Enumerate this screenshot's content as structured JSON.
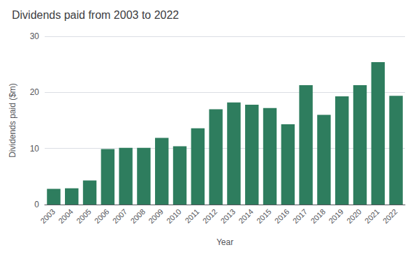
{
  "chart_data": {
    "type": "bar",
    "title": "Dividends paid from 2003 to 2022",
    "xlabel": "Year",
    "ylabel": "Dividends paid ($m)",
    "categories": [
      2003,
      2004,
      2005,
      2006,
      2007,
      2008,
      2009,
      2010,
      2011,
      2012,
      2013,
      2014,
      2015,
      2016,
      2017,
      2018,
      2019,
      2020,
      2021,
      2022
    ],
    "values": [
      2.8,
      2.9,
      4.3,
      9.9,
      10.1,
      10.1,
      11.9,
      10.4,
      13.6,
      17.0,
      18.2,
      17.8,
      17.2,
      14.3,
      21.3,
      16.0,
      19.3,
      21.3,
      25.4,
      19.4
    ],
    "color": "#2e7d5e",
    "ylim": [
      0,
      30
    ],
    "yticks": [
      0,
      10,
      20,
      30
    ],
    "grid": true
  }
}
